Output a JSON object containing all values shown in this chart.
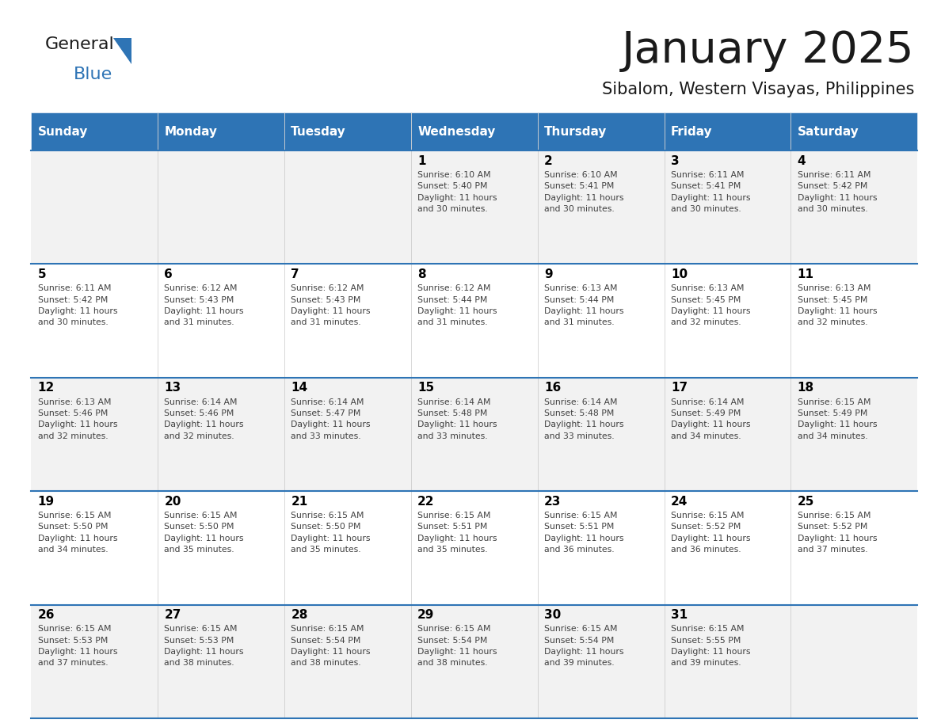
{
  "title": "January 2025",
  "subtitle": "Sibalom, Western Visayas, Philippines",
  "days_of_week": [
    "Sunday",
    "Monday",
    "Tuesday",
    "Wednesday",
    "Thursday",
    "Friday",
    "Saturday"
  ],
  "header_bg": "#2E74B5",
  "header_text": "#FFFFFF",
  "row_bg_even": "#F2F2F2",
  "row_bg_odd": "#FFFFFF",
  "cell_border_color": "#2E74B5",
  "day_num_color": "#000000",
  "info_text_color": "#404040",
  "title_color": "#1a1a1a",
  "subtitle_color": "#1a1a1a",
  "logo_general_color": "#1a1a1a",
  "logo_blue_color": "#2E74B5",
  "logo_triangle_color": "#2E74B5",
  "weeks": [
    {
      "days": [
        {
          "day": null,
          "info": ""
        },
        {
          "day": null,
          "info": ""
        },
        {
          "day": null,
          "info": ""
        },
        {
          "day": 1,
          "info": "Sunrise: 6:10 AM\nSunset: 5:40 PM\nDaylight: 11 hours\nand 30 minutes."
        },
        {
          "day": 2,
          "info": "Sunrise: 6:10 AM\nSunset: 5:41 PM\nDaylight: 11 hours\nand 30 minutes."
        },
        {
          "day": 3,
          "info": "Sunrise: 6:11 AM\nSunset: 5:41 PM\nDaylight: 11 hours\nand 30 minutes."
        },
        {
          "day": 4,
          "info": "Sunrise: 6:11 AM\nSunset: 5:42 PM\nDaylight: 11 hours\nand 30 minutes."
        }
      ]
    },
    {
      "days": [
        {
          "day": 5,
          "info": "Sunrise: 6:11 AM\nSunset: 5:42 PM\nDaylight: 11 hours\nand 30 minutes."
        },
        {
          "day": 6,
          "info": "Sunrise: 6:12 AM\nSunset: 5:43 PM\nDaylight: 11 hours\nand 31 minutes."
        },
        {
          "day": 7,
          "info": "Sunrise: 6:12 AM\nSunset: 5:43 PM\nDaylight: 11 hours\nand 31 minutes."
        },
        {
          "day": 8,
          "info": "Sunrise: 6:12 AM\nSunset: 5:44 PM\nDaylight: 11 hours\nand 31 minutes."
        },
        {
          "day": 9,
          "info": "Sunrise: 6:13 AM\nSunset: 5:44 PM\nDaylight: 11 hours\nand 31 minutes."
        },
        {
          "day": 10,
          "info": "Sunrise: 6:13 AM\nSunset: 5:45 PM\nDaylight: 11 hours\nand 32 minutes."
        },
        {
          "day": 11,
          "info": "Sunrise: 6:13 AM\nSunset: 5:45 PM\nDaylight: 11 hours\nand 32 minutes."
        }
      ]
    },
    {
      "days": [
        {
          "day": 12,
          "info": "Sunrise: 6:13 AM\nSunset: 5:46 PM\nDaylight: 11 hours\nand 32 minutes."
        },
        {
          "day": 13,
          "info": "Sunrise: 6:14 AM\nSunset: 5:46 PM\nDaylight: 11 hours\nand 32 minutes."
        },
        {
          "day": 14,
          "info": "Sunrise: 6:14 AM\nSunset: 5:47 PM\nDaylight: 11 hours\nand 33 minutes."
        },
        {
          "day": 15,
          "info": "Sunrise: 6:14 AM\nSunset: 5:48 PM\nDaylight: 11 hours\nand 33 minutes."
        },
        {
          "day": 16,
          "info": "Sunrise: 6:14 AM\nSunset: 5:48 PM\nDaylight: 11 hours\nand 33 minutes."
        },
        {
          "day": 17,
          "info": "Sunrise: 6:14 AM\nSunset: 5:49 PM\nDaylight: 11 hours\nand 34 minutes."
        },
        {
          "day": 18,
          "info": "Sunrise: 6:15 AM\nSunset: 5:49 PM\nDaylight: 11 hours\nand 34 minutes."
        }
      ]
    },
    {
      "days": [
        {
          "day": 19,
          "info": "Sunrise: 6:15 AM\nSunset: 5:50 PM\nDaylight: 11 hours\nand 34 minutes."
        },
        {
          "day": 20,
          "info": "Sunrise: 6:15 AM\nSunset: 5:50 PM\nDaylight: 11 hours\nand 35 minutes."
        },
        {
          "day": 21,
          "info": "Sunrise: 6:15 AM\nSunset: 5:50 PM\nDaylight: 11 hours\nand 35 minutes."
        },
        {
          "day": 22,
          "info": "Sunrise: 6:15 AM\nSunset: 5:51 PM\nDaylight: 11 hours\nand 35 minutes."
        },
        {
          "day": 23,
          "info": "Sunrise: 6:15 AM\nSunset: 5:51 PM\nDaylight: 11 hours\nand 36 minutes."
        },
        {
          "day": 24,
          "info": "Sunrise: 6:15 AM\nSunset: 5:52 PM\nDaylight: 11 hours\nand 36 minutes."
        },
        {
          "day": 25,
          "info": "Sunrise: 6:15 AM\nSunset: 5:52 PM\nDaylight: 11 hours\nand 37 minutes."
        }
      ]
    },
    {
      "days": [
        {
          "day": 26,
          "info": "Sunrise: 6:15 AM\nSunset: 5:53 PM\nDaylight: 11 hours\nand 37 minutes."
        },
        {
          "day": 27,
          "info": "Sunrise: 6:15 AM\nSunset: 5:53 PM\nDaylight: 11 hours\nand 38 minutes."
        },
        {
          "day": 28,
          "info": "Sunrise: 6:15 AM\nSunset: 5:54 PM\nDaylight: 11 hours\nand 38 minutes."
        },
        {
          "day": 29,
          "info": "Sunrise: 6:15 AM\nSunset: 5:54 PM\nDaylight: 11 hours\nand 38 minutes."
        },
        {
          "day": 30,
          "info": "Sunrise: 6:15 AM\nSunset: 5:54 PM\nDaylight: 11 hours\nand 39 minutes."
        },
        {
          "day": 31,
          "info": "Sunrise: 6:15 AM\nSunset: 5:55 PM\nDaylight: 11 hours\nand 39 minutes."
        },
        {
          "day": null,
          "info": ""
        }
      ]
    }
  ]
}
